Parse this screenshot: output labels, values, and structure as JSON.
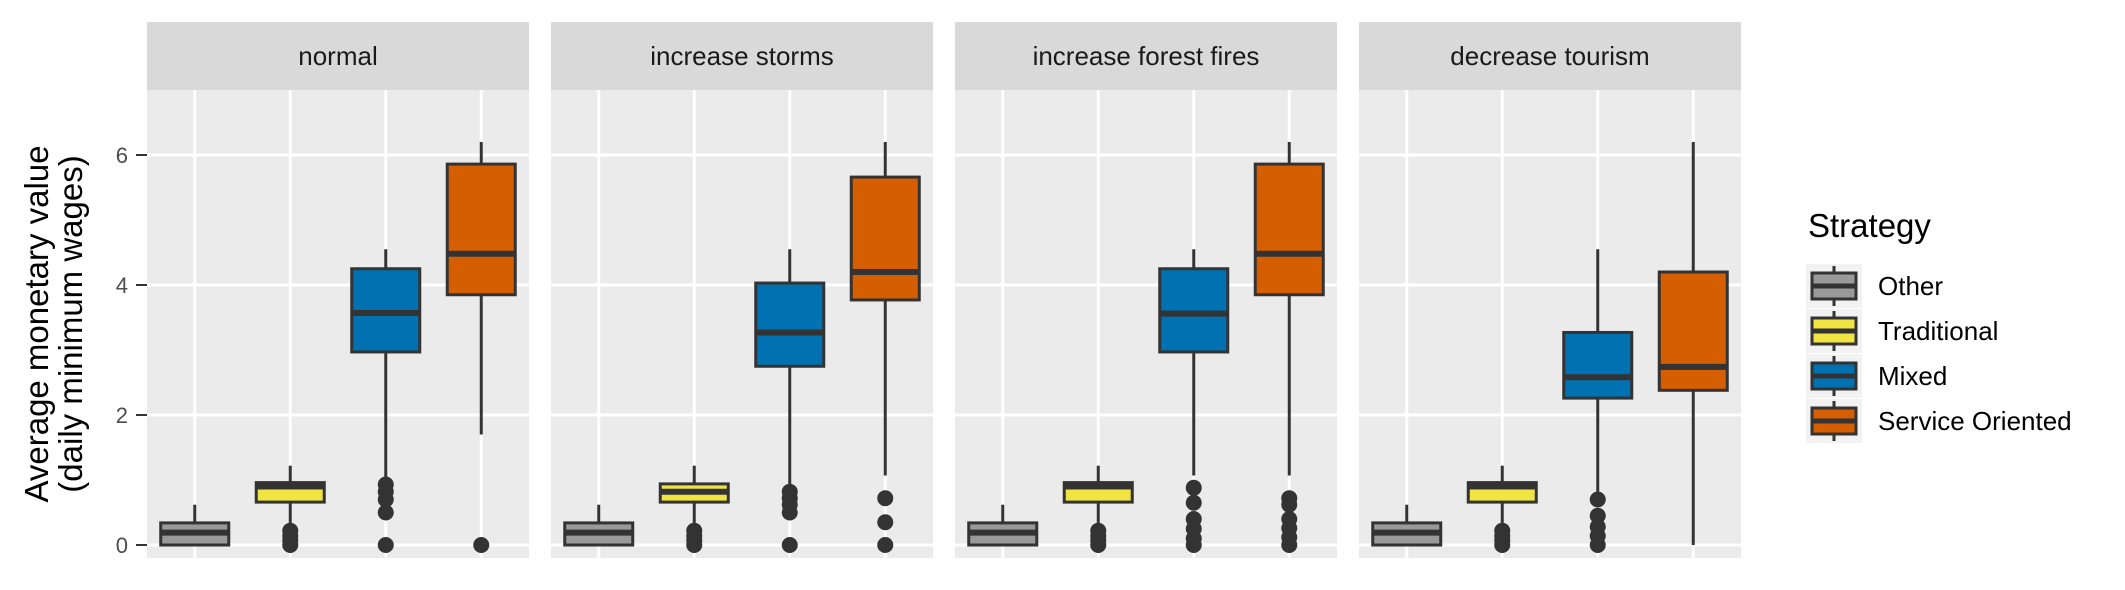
{
  "chart_data": {
    "type": "boxplot",
    "ylabel": [
      "Average monetary value",
      "(daily minimum wages)"
    ],
    "ylim": [
      -0.2,
      7.0
    ],
    "y_ticks": [
      0,
      2,
      4,
      6
    ],
    "y_tick_labels": [
      "0",
      "2",
      "4",
      "6"
    ],
    "grid": true,
    "legend": {
      "title": "Strategy",
      "position": "right",
      "entries": [
        "Other",
        "Traditional",
        "Mixed",
        "Service Oriented"
      ]
    },
    "colors": {
      "Other": "#999999",
      "Traditional": "#f0e442",
      "Mixed": "#0072b2",
      "Service Oriented": "#d55e00"
    },
    "categories": [
      "Other",
      "Traditional",
      "Mixed",
      "Service Oriented"
    ],
    "panels": [
      {
        "label": "normal",
        "boxes": [
          {
            "group": "Other",
            "whisker_low": 0.0,
            "q1": 0.0,
            "median": 0.19,
            "q3": 0.34,
            "whisker_high": 0.62,
            "outliers": []
          },
          {
            "group": "Traditional",
            "whisker_low": 0.34,
            "q1": 0.66,
            "median": 0.9,
            "q3": 0.96,
            "whisker_high": 1.22,
            "outliers": [
              0.0,
              0.07,
              0.14,
              0.22
            ]
          },
          {
            "group": "Mixed",
            "whisker_low": 1.02,
            "q1": 2.97,
            "median": 3.57,
            "q3": 4.25,
            "whisker_high": 4.55,
            "outliers": [
              0.0,
              0.5,
              0.7,
              0.82,
              0.93
            ]
          },
          {
            "group": "Service Oriented",
            "whisker_low": 1.7,
            "q1": 3.85,
            "median": 4.48,
            "q3": 5.86,
            "whisker_high": 6.2,
            "outliers": [
              0.0
            ]
          }
        ]
      },
      {
        "label": "increase storms",
        "boxes": [
          {
            "group": "Other",
            "whisker_low": 0.0,
            "q1": 0.0,
            "median": 0.19,
            "q3": 0.34,
            "whisker_high": 0.62,
            "outliers": []
          },
          {
            "group": "Traditional",
            "whisker_low": 0.34,
            "q1": 0.66,
            "median": 0.82,
            "q3": 0.94,
            "whisker_high": 1.22,
            "outliers": [
              0.0,
              0.07,
              0.14,
              0.22
            ]
          },
          {
            "group": "Mixed",
            "whisker_low": 0.93,
            "q1": 2.75,
            "median": 3.27,
            "q3": 4.03,
            "whisker_high": 4.55,
            "outliers": [
              0.0,
              0.5,
              0.62,
              0.72,
              0.82
            ]
          },
          {
            "group": "Service Oriented",
            "whisker_low": 1.07,
            "q1": 3.77,
            "median": 4.2,
            "q3": 5.66,
            "whisker_high": 6.2,
            "outliers": [
              0.0,
              0.35,
              0.72
            ]
          }
        ]
      },
      {
        "label": "increase forest fires",
        "boxes": [
          {
            "group": "Other",
            "whisker_low": 0.0,
            "q1": 0.0,
            "median": 0.19,
            "q3": 0.34,
            "whisker_high": 0.62,
            "outliers": []
          },
          {
            "group": "Traditional",
            "whisker_low": 0.34,
            "q1": 0.66,
            "median": 0.9,
            "q3": 0.96,
            "whisker_high": 1.22,
            "outliers": [
              0.0,
              0.07,
              0.14,
              0.22
            ]
          },
          {
            "group": "Mixed",
            "whisker_low": 1.07,
            "q1": 2.97,
            "median": 3.56,
            "q3": 4.25,
            "whisker_high": 4.55,
            "outliers": [
              0.0,
              0.1,
              0.25,
              0.4,
              0.65,
              0.88
            ]
          },
          {
            "group": "Service Oriented",
            "whisker_low": 1.07,
            "q1": 3.85,
            "median": 4.48,
            "q3": 5.86,
            "whisker_high": 6.2,
            "outliers": [
              0.0,
              0.12,
              0.26,
              0.4,
              0.62,
              0.72
            ]
          }
        ]
      },
      {
        "label": "decrease tourism",
        "boxes": [
          {
            "group": "Other",
            "whisker_low": 0.0,
            "q1": 0.0,
            "median": 0.19,
            "q3": 0.34,
            "whisker_high": 0.62,
            "outliers": []
          },
          {
            "group": "Traditional",
            "whisker_low": 0.34,
            "q1": 0.66,
            "median": 0.9,
            "q3": 0.96,
            "whisker_high": 1.22,
            "outliers": [
              0.0,
              0.07,
              0.14,
              0.22
            ]
          },
          {
            "group": "Mixed",
            "whisker_low": 0.82,
            "q1": 2.26,
            "median": 2.58,
            "q3": 3.27,
            "whisker_high": 4.55,
            "outliers": [
              0.0,
              0.14,
              0.28,
              0.45,
              0.7
            ]
          },
          {
            "group": "Service Oriented",
            "whisker_low": 0.0,
            "q1": 2.38,
            "median": 2.74,
            "q3": 4.2,
            "whisker_high": 6.2,
            "outliers": []
          }
        ]
      }
    ]
  }
}
